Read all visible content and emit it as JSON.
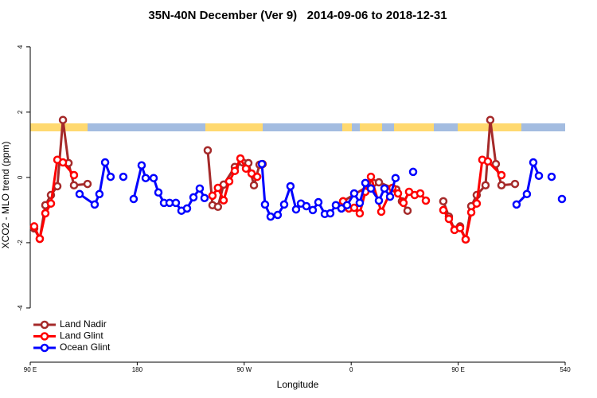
{
  "chart_data": {
    "type": "line",
    "title": "35N-40N December (Ver 9)   2014-09-06 to 2018-12-31",
    "x_label": "Longitude",
    "y_label": "XCO2 - MLO trend (ppm)",
    "xlim": [
      90,
      540
    ],
    "xticks": [
      {
        "value": 90,
        "label": "90 E"
      },
      180,
      {
        "value": 270,
        "label": "90 W"
      },
      {
        "value": 360,
        "label": "0"
      },
      {
        "value": 450,
        "label": "90 E"
      },
      540
    ],
    "ylim": [
      -5.66,
      4.46
    ],
    "yticks": [
      -4,
      -2,
      0,
      2,
      4
    ],
    "legend": "bottom-left",
    "series": [
      {
        "name": "Land Nadir",
        "color": "#a52a2a",
        "x": [
          93.3,
          98,
          102.7,
          107.4,
          112.8,
          117.5,
          122.2,
          126.8,
          138.2,
          190,
          239.3,
          243.3,
          247.9,
          252.7,
          262.1,
          268.8,
          273.5,
          278.2,
          282.9,
          285.5,
          320,
          353.2,
          378.6,
          383.3,
          398,
          402.7,
          407.4,
          420,
          437.5,
          442.2,
          446.9,
          451.6,
          456.3,
          461,
          465.6,
          473,
          477,
          481.7,
          486.4,
          497.8
        ],
        "values": [
          -1.56,
          -1.88,
          -0.85,
          -0.54,
          -0.27,
          1.76,
          0.44,
          -0.24,
          -0.2,
          null,
          0.83,
          -0.85,
          -0.9,
          -0.22,
          0.32,
          0.46,
          0.44,
          -0.24,
          0.39,
          0.41,
          null,
          -0.73,
          -0.17,
          -0.15,
          -0.37,
          -0.73,
          -1.02,
          null,
          -0.73,
          -1.2,
          -1.6,
          -1.5,
          -1.9,
          -0.88,
          -0.54,
          -0.24,
          1.76,
          0.41,
          -0.24,
          -0.2
        ]
      },
      {
        "name": "Land Glint",
        "color": "#ff0000",
        "x": [
          93.3,
          98,
          102.7,
          107.4,
          112.8,
          117.5,
          126.8,
          190,
          243.3,
          247.9,
          252.7,
          257.4,
          262.1,
          266.8,
          271.5,
          276.2,
          280.9,
          320,
          353.2,
          358,
          362.5,
          367.2,
          371.9,
          376.6,
          385.3,
          394.7,
          399.4,
          404,
          408.7,
          413.4,
          418.1,
          422.8,
          430,
          437.5,
          442.2,
          446.9,
          451.6,
          456.3,
          461,
          465.6,
          470.3,
          475,
          486.4
        ],
        "values": [
          -1.5,
          -1.88,
          -1.1,
          -0.8,
          0.54,
          0.46,
          0.07,
          null,
          -0.56,
          -0.32,
          -0.7,
          -0.12,
          0.2,
          0.58,
          0.27,
          0.12,
          0.02,
          null,
          -0.73,
          -0.95,
          -0.93,
          -1.1,
          -0.44,
          0.02,
          -1.05,
          -0.32,
          -0.49,
          -0.78,
          -0.44,
          -0.54,
          -0.49,
          -0.71,
          null,
          -1.0,
          -1.27,
          -1.61,
          -1.55,
          -1.9,
          -1.07,
          -0.8,
          0.54,
          0.49,
          0.07
        ]
      },
      {
        "name": "Ocean Glint",
        "color": "#0000ff",
        "x": [
          131.5,
          144.2,
          148.2,
          153,
          157.6,
          162,
          168.3,
          172,
          177,
          183.7,
          187.1,
          193.8,
          197.8,
          202.5,
          207.2,
          212.5,
          217.2,
          221.9,
          227.3,
          232.6,
          236.6,
          260,
          284.9,
          287.5,
          292.2,
          298.2,
          303.6,
          308.9,
          313.6,
          317.7,
          322.3,
          327.7,
          332.4,
          337.8,
          342.4,
          347.1,
          351.8,
          356.5,
          362.5,
          367.2,
          371.9,
          376.6,
          383.3,
          388,
          392.7,
          397.3,
          405,
          412.1,
          450,
          499.1,
          507.8,
          513.2,
          517.9,
          523,
          528.6,
          533,
          537.3
        ],
        "values": [
          -0.51,
          -0.83,
          -0.51,
          0.46,
          0.02,
          null,
          0.02,
          null,
          -0.66,
          0.37,
          -0.02,
          -0.02,
          -0.46,
          -0.78,
          -0.78,
          -0.78,
          -1.02,
          -0.95,
          -0.61,
          -0.34,
          -0.63,
          null,
          0.41,
          -0.83,
          -1.2,
          -1.15,
          -0.83,
          -0.27,
          -0.98,
          -0.8,
          -0.88,
          -1.0,
          -0.76,
          -1.12,
          -1.1,
          -0.85,
          -0.95,
          -0.85,
          -0.49,
          -0.78,
          -0.17,
          -0.34,
          -0.71,
          -0.34,
          -0.59,
          -0.02,
          null,
          0.17,
          null,
          -0.83,
          -0.51,
          0.46,
          0.05,
          null,
          0.02,
          null,
          -0.66
        ]
      }
    ]
  }
}
